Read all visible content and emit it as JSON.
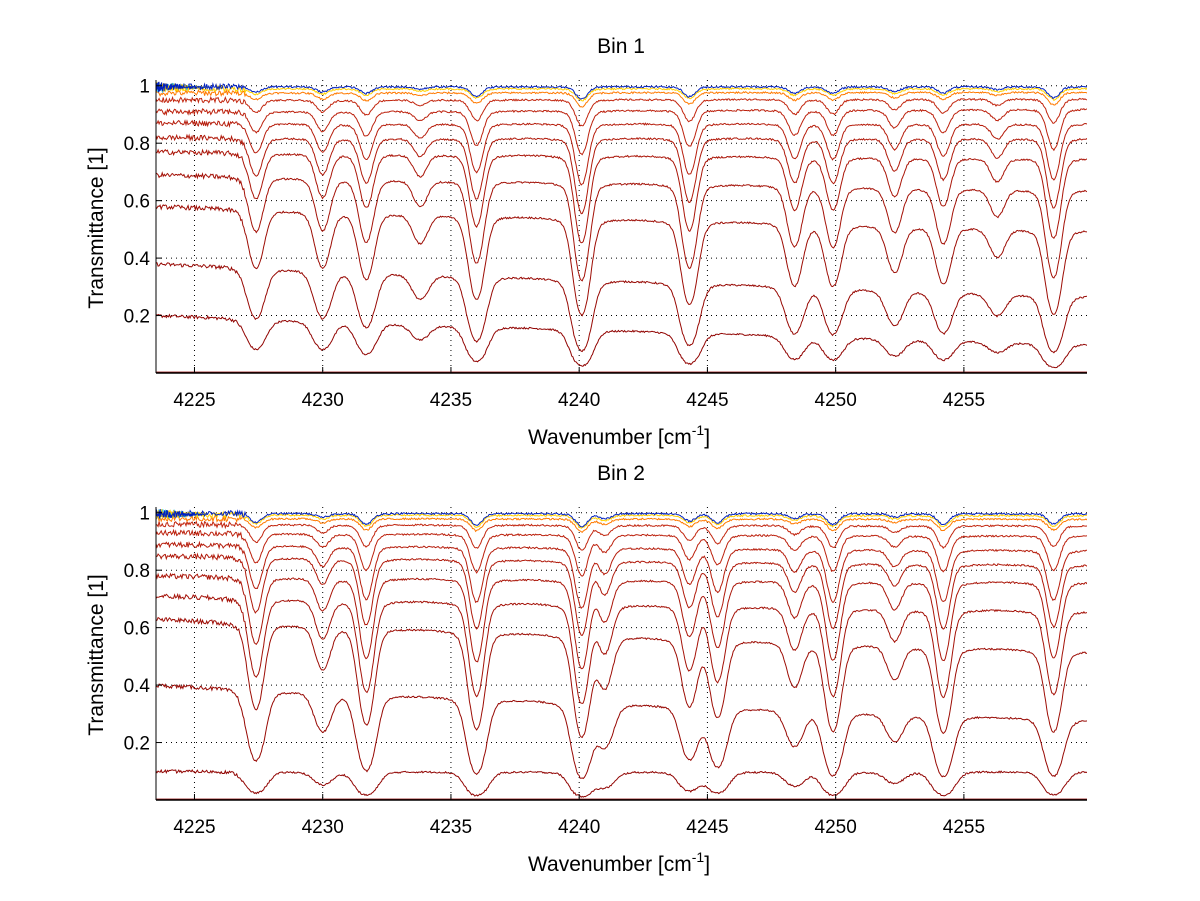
{
  "chart_data": [
    {
      "type": "line",
      "title": "Bin 1",
      "xlabel": "Wavenumber [cm",
      "xlabel_sup": "-1",
      "xlabel_end": "]",
      "ylabel": "Transmittance [1]",
      "xlim": [
        4223.5,
        4259.8
      ],
      "ylim": [
        0,
        1.02
      ],
      "x_ticks": [
        4225,
        4230,
        4235,
        4240,
        4245,
        4250,
        4255
      ],
      "x_tick_labels": [
        "4225",
        "4230",
        "4235",
        "4240",
        "4245",
        "4250",
        "4255"
      ],
      "y_ticks": [
        0.2,
        0.4,
        0.6,
        0.8,
        1
      ],
      "y_tick_labels": [
        "0.2",
        "0.4",
        "0.6",
        "0.8",
        "1"
      ],
      "grid": true,
      "series_style": "stack of transmittance spectra; deepest absorption shown in dark red, near-unity spectra in orange/yellow/cyan/blue",
      "lines": [
        {
          "pos": 4227.4,
          "depth": 1.0
        },
        {
          "pos": 4230.0,
          "depth": 0.95
        },
        {
          "pos": 4231.7,
          "depth": 1.2
        },
        {
          "pos": 4233.8,
          "depth": 0.45
        },
        {
          "pos": 4236.0,
          "depth": 1.7
        },
        {
          "pos": 4240.1,
          "depth": 2.2
        },
        {
          "pos": 4244.3,
          "depth": 1.8
        },
        {
          "pos": 4248.4,
          "depth": 1.2
        },
        {
          "pos": 4249.9,
          "depth": 1.2
        },
        {
          "pos": 4252.3,
          "depth": 0.85
        },
        {
          "pos": 4254.2,
          "depth": 1.1
        },
        {
          "pos": 4256.3,
          "depth": 0.5
        },
        {
          "pos": 4258.5,
          "depth": 2.0
        }
      ],
      "baselines": [
        {
          "start": 0.0,
          "end": 0.0
        },
        {
          "start": 0.2,
          "end": 0.1
        },
        {
          "start": 0.38,
          "end": 0.27
        },
        {
          "start": 0.58,
          "end": 0.5
        },
        {
          "start": 0.69,
          "end": 0.64
        },
        {
          "start": 0.77,
          "end": 0.75
        },
        {
          "start": 0.82,
          "end": 0.82
        },
        {
          "start": 0.87,
          "end": 0.87
        },
        {
          "start": 0.91,
          "end": 0.92
        },
        {
          "start": 0.95,
          "end": 0.955
        },
        {
          "start": 0.975,
          "end": 0.978
        },
        {
          "start": 0.99,
          "end": 0.99
        },
        {
          "start": 0.997,
          "end": 0.997
        }
      ]
    },
    {
      "type": "line",
      "title": "Bin 2",
      "xlabel": "Wavenumber [cm",
      "xlabel_sup": "-1",
      "xlabel_end": "]",
      "ylabel": "Transmittance [1]",
      "xlim": [
        4223.5,
        4259.8
      ],
      "ylim": [
        0,
        1.02
      ],
      "x_ticks": [
        4225,
        4230,
        4235,
        4240,
        4245,
        4250,
        4255
      ],
      "x_tick_labels": [
        "4225",
        "4230",
        "4235",
        "4240",
        "4245",
        "4250",
        "4255"
      ],
      "y_ticks": [
        0.2,
        0.4,
        0.6,
        0.8,
        1
      ],
      "y_tick_labels": [
        "0.2",
        "0.4",
        "0.6",
        "0.8",
        "1"
      ],
      "grid": true,
      "series_style": "stack of transmittance spectra; deepest absorption shown in dark red, near-unity spectra in orange/yellow/cyan/blue",
      "lines": [
        {
          "pos": 4227.4,
          "depth": 1.6
        },
        {
          "pos": 4230.0,
          "depth": 0.7
        },
        {
          "pos": 4231.7,
          "depth": 2.0
        },
        {
          "pos": 4236.0,
          "depth": 2.1
        },
        {
          "pos": 4240.1,
          "depth": 2.3
        },
        {
          "pos": 4241.0,
          "depth": 0.9
        },
        {
          "pos": 4244.3,
          "depth": 1.3
        },
        {
          "pos": 4245.4,
          "depth": 1.6
        },
        {
          "pos": 4248.4,
          "depth": 0.8
        },
        {
          "pos": 4249.9,
          "depth": 2.0
        },
        {
          "pos": 4252.3,
          "depth": 0.6
        },
        {
          "pos": 4254.2,
          "depth": 2.0
        },
        {
          "pos": 4258.5,
          "depth": 1.9
        }
      ],
      "baselines": [
        {
          "start": 0.0,
          "end": 0.0
        },
        {
          "start": 0.1,
          "end": 0.1
        },
        {
          "start": 0.4,
          "end": 0.28
        },
        {
          "start": 0.63,
          "end": 0.52
        },
        {
          "start": 0.71,
          "end": 0.66
        },
        {
          "start": 0.78,
          "end": 0.76
        },
        {
          "start": 0.85,
          "end": 0.82
        },
        {
          "start": 0.89,
          "end": 0.87
        },
        {
          "start": 0.93,
          "end": 0.92
        },
        {
          "start": 0.96,
          "end": 0.955
        },
        {
          "start": 0.98,
          "end": 0.978
        },
        {
          "start": 0.993,
          "end": 0.99
        },
        {
          "start": 0.998,
          "end": 0.997
        }
      ]
    }
  ],
  "colors": {
    "deep": "#8b0000",
    "mid": "#c62810",
    "orange": "#ff7a00",
    "yellow": "#ffd200",
    "cyan": "#22c0e0",
    "blue": "#0020c0",
    "grid": "#000000",
    "axis": "#000000"
  }
}
